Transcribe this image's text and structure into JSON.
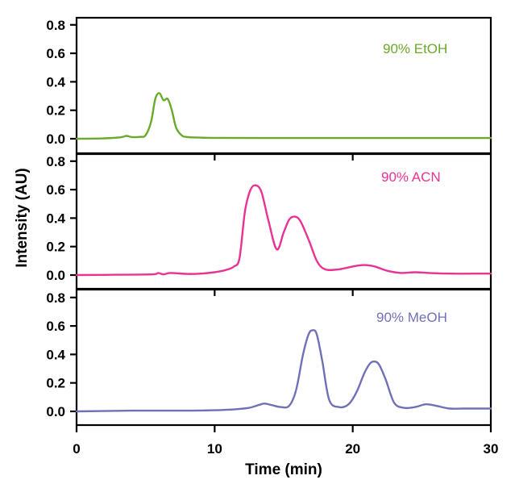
{
  "chart_data": {
    "type": "line",
    "title": "",
    "xlabel": "Time (min)",
    "ylabel": "Intensity (AU)",
    "xlim": [
      0,
      30
    ],
    "x_ticks": [
      "0",
      "10",
      "20",
      "30"
    ],
    "x_tick_values": [
      0,
      10,
      20,
      30
    ],
    "ylim": [
      -0.1,
      0.85
    ],
    "y_ticks": [
      "0.0",
      "0.2",
      "0.4",
      "0.6",
      "0.8"
    ],
    "y_tick_values": [
      0,
      0.2,
      0.4,
      0.6,
      0.8
    ],
    "grid": false,
    "layout": "three vertically stacked panels sharing x-axis",
    "panels": [
      {
        "name": "90% EtOH",
        "label": "90% EtOH",
        "color": "#6aaa2a",
        "x": [
          0,
          2,
          3.2,
          3.6,
          4.0,
          4.6,
          5.0,
          5.4,
          5.7,
          6.0,
          6.3,
          6.6,
          6.9,
          7.2,
          7.6,
          8.0,
          9,
          10,
          15,
          20,
          25,
          30
        ],
        "y": [
          0,
          0.003,
          0.01,
          0.02,
          0.012,
          0.013,
          0.025,
          0.12,
          0.28,
          0.32,
          0.27,
          0.28,
          0.2,
          0.08,
          0.025,
          0.012,
          0.008,
          0.006,
          0.005,
          0.005,
          0.005,
          0.005
        ]
      },
      {
        "name": "90% ACN",
        "label": "90% ACN",
        "color": "#e63394",
        "x": [
          0,
          3,
          5.5,
          5.9,
          6.3,
          6.8,
          8,
          9,
          10,
          10.8,
          11.4,
          11.8,
          12.2,
          12.6,
          13.0,
          13.4,
          13.9,
          14.5,
          15.0,
          15.4,
          15.8,
          16.2,
          16.8,
          17.4,
          18.0,
          19,
          20,
          20.8,
          21.6,
          22.5,
          23.5,
          24.5,
          25.5,
          27,
          30
        ],
        "y": [
          0,
          0.002,
          0.005,
          0.015,
          0.005,
          0.015,
          0.008,
          0.01,
          0.02,
          0.035,
          0.06,
          0.12,
          0.45,
          0.6,
          0.63,
          0.58,
          0.38,
          0.18,
          0.3,
          0.39,
          0.41,
          0.38,
          0.25,
          0.1,
          0.04,
          0.04,
          0.06,
          0.07,
          0.06,
          0.03,
          0.015,
          0.02,
          0.015,
          0.01,
          0.01
        ]
      },
      {
        "name": "90% MeOH",
        "label": "90% MeOH",
        "color": "#7070b8",
        "x": [
          0,
          4,
          8,
          10,
          11.5,
          12.5,
          13.2,
          13.6,
          14.1,
          14.8,
          15.4,
          15.9,
          16.4,
          16.8,
          17.1,
          17.4,
          17.8,
          18.3,
          19.0,
          19.7,
          20.3,
          20.8,
          21.2,
          21.5,
          21.9,
          22.4,
          23.0,
          23.7,
          24.5,
          25.3,
          26.0,
          27,
          28,
          30
        ],
        "y": [
          0,
          0.005,
          0.005,
          0.008,
          0.015,
          0.025,
          0.045,
          0.055,
          0.045,
          0.03,
          0.04,
          0.15,
          0.4,
          0.54,
          0.57,
          0.54,
          0.35,
          0.08,
          0.03,
          0.05,
          0.14,
          0.26,
          0.33,
          0.35,
          0.33,
          0.22,
          0.06,
          0.025,
          0.03,
          0.05,
          0.04,
          0.02,
          0.02,
          0.02
        ]
      }
    ]
  }
}
